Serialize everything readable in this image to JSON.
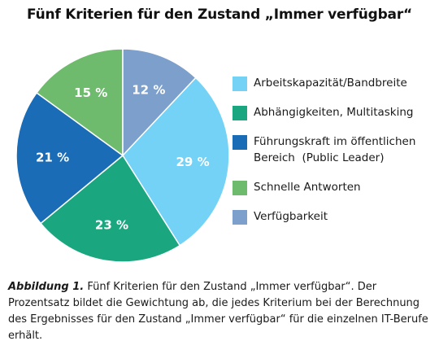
{
  "chart_data": {
    "type": "pie",
    "title": "Fünf Kriterien für den Zustand „Immer verfügbar“",
    "slices": [
      {
        "label": "Arbeitskapazität/Bandbreite",
        "value": 29,
        "display": "29 %",
        "color": "#73d2f5"
      },
      {
        "label": "Abhängigkeiten, Multitasking",
        "value": 23,
        "display": "23 %",
        "color": "#1aa780"
      },
      {
        "label": "Führungskraft im öffentlichen Bereich  (Public Leader)",
        "label_line1": "Führungskraft im öffentlichen",
        "label_line2": "Bereich  (Public Leader)",
        "value": 21,
        "display": "21 %",
        "color": "#1a6cb7"
      },
      {
        "label": "Schnelle Antworten",
        "value": 15,
        "display": "15 %",
        "color": "#6fbb6d"
      },
      {
        "label": "Verfügbarkeit",
        "value": 12,
        "display": "12 %",
        "color": "#7c9fcb"
      }
    ]
  },
  "caption": {
    "figure_label": "Abbildung 1.",
    "text": " Fünf Kriterien für den Zustand „Immer verfügbar“. Der Prozentsatz bildet die Gewichtung ab, die jedes Kriterium bei der Berechnung des Ergebnisses für den Zustand „Immer verfügbar“ für die einzelnen IT-Berufe erhält."
  }
}
